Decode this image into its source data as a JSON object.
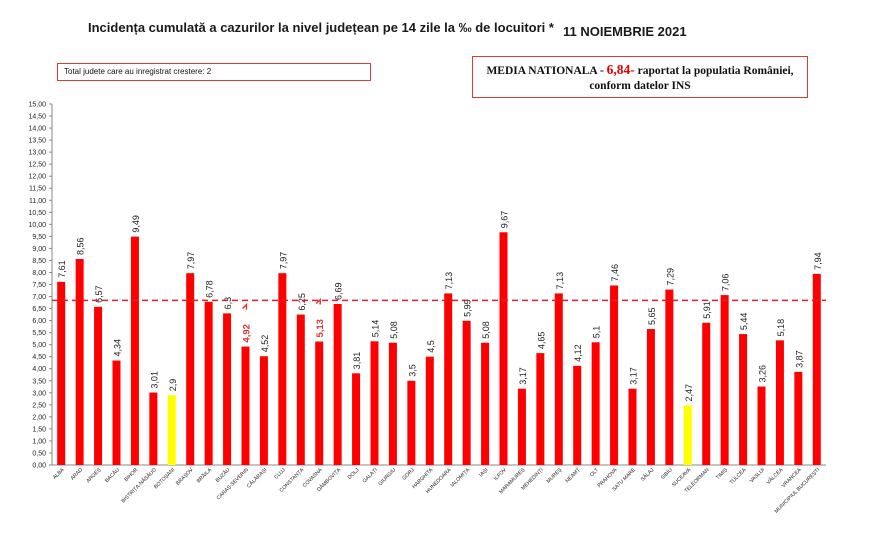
{
  "header": {
    "title": "Incidența cumulată a cazurilor la nivel județean pe 14 zile la ‰ de locuitori *",
    "date": "11 NOIEMBRIE 2021"
  },
  "boxes": {
    "increase_text": "Total judete care au inregistrat crestere: 2",
    "national_prefix": "MEDIA NATIONALA -",
    "national_value": "6,84-",
    "national_suffix": "raportat la populatia României,",
    "national_line2": "conform datelor INS"
  },
  "chart_data": {
    "type": "bar",
    "ylim": [
      0,
      15
    ],
    "ytick_step": 0.5,
    "reference_line": 6.84,
    "categories": [
      "ALBA",
      "ARAD",
      "ARGEȘ",
      "BACĂU",
      "BIHOR",
      "BISTRIȚA-NĂSĂUD",
      "BOTOȘANI",
      "BRAȘOV",
      "BRĂILA",
      "BUZĂU",
      "CARAȘ-SEVERIN",
      "CĂLĂRAȘI",
      "CLUJ",
      "CONSTANȚA",
      "COVASNA",
      "DÂMBOVIȚA",
      "DOLJ",
      "GALAȚI",
      "GIURGIU",
      "GORJ",
      "HARGHITA",
      "HUNEDOARA",
      "IALOMIȚA",
      "IAȘI",
      "ILFOV",
      "MARAMUREȘ",
      "MEHEDINȚI",
      "MUREȘ",
      "NEAMȚ",
      "OLT",
      "PRAHOVA",
      "SATU MARE",
      "SĂLAJ",
      "SIBIU",
      "SUCEAVA",
      "TELEORMAN",
      "TIMIȘ",
      "TULCEA",
      "VASLUI",
      "VÂLCEA",
      "VRANCEA",
      "MUNICIPIUL BUCUREȘTI"
    ],
    "values": [
      7.61,
      8.56,
      6.57,
      4.34,
      9.49,
      3.01,
      2.9,
      7.97,
      6.78,
      6.3,
      4.92,
      4.52,
      7.97,
      6.25,
      5.13,
      6.69,
      3.81,
      5.14,
      5.08,
      3.5,
      4.5,
      7.13,
      5.99,
      5.08,
      9.67,
      3.17,
      4.65,
      7.13,
      4.12,
      5.1,
      7.46,
      3.17,
      5.65,
      7.29,
      2.47,
      5.91,
      7.06,
      5.44,
      3.26,
      5.18,
      3.87,
      7.94
    ],
    "labels": [
      "7,61",
      "8,56",
      "6,57",
      "4,34",
      "9,49",
      "3,01",
      "2,9",
      "7,97",
      "6,78",
      "6,3",
      "4,92",
      "4,52",
      "7,97",
      "6,25",
      "5,13",
      "6,69",
      "3,81",
      "5,14",
      "5,08",
      "3,5",
      "4,5",
      "7,13",
      "5,99",
      "5,08",
      "9,67",
      "3,17",
      "4,65",
      "7,13",
      "4,12",
      "5,1",
      "7,46",
      "3,17",
      "5,65",
      "7,29",
      "2,47",
      "5,91",
      "7,06",
      "5,44",
      "3,26",
      "5,18",
      "3,87",
      "7,94"
    ],
    "highlight_low": [
      "BOTOȘANI",
      "SUCEAVA"
    ],
    "increase": [
      "CARAȘ-SEVERIN",
      "COVASNA"
    ],
    "colors": {
      "bar": "#ff0000",
      "low": "#ffff00",
      "reference": "#e02020",
      "increase_label": "#e03030",
      "text": "#222222"
    }
  }
}
